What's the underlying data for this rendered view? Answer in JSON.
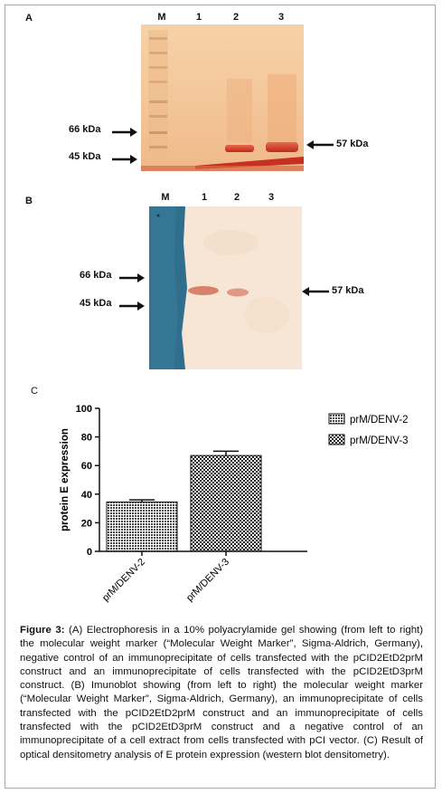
{
  "panel_a": {
    "letter": "A",
    "lanes": [
      "M",
      "1",
      "2",
      "3"
    ],
    "markers_left": [
      "66 kDa",
      "45 kDa"
    ],
    "marker_right": "57 kDa"
  },
  "panel_b": {
    "letter": "B",
    "lanes": [
      "M",
      "1",
      "2",
      "3"
    ],
    "markers_left": [
      "66 kDa",
      "45 kDa"
    ],
    "marker_right": "57 kDa"
  },
  "panel_c": {
    "letter": "C"
  },
  "chart_data": {
    "type": "bar",
    "categories": [
      "prM/DENV-2",
      "prM/DENV-3"
    ],
    "values": [
      34.5,
      67
    ],
    "errors": [
      1.5,
      3
    ],
    "xlabel": "",
    "ylabel": "protein E expression",
    "ylim": [
      0,
      100
    ],
    "yticks": [
      0,
      20,
      40,
      60,
      80,
      100
    ],
    "legend": [
      "prM/DENV-2",
      "prM/DENV-3"
    ],
    "legend_position": "top-right",
    "grid": false
  },
  "caption": {
    "label": "Figure 3:",
    "text": " (A) Electrophoresis in a 10% polyacrylamide gel showing (from left to right) the molecular weight marker (“Molecular Weight Marker”, Sigma-Aldrich, Germany), negative control of an immunoprecipitate of cells transfected with the pCID2EtD2prM construct and an immunoprecipitate of cells transfected with the pCID2EtD3prM construct. (B) Imunoblot showing (from left to right) the molecular weight marker (“Molecular Weight Marker”, Sigma-Aldrich, Germany), an immunoprecipitate of cells transfected with the pCID2EtD2prM construct and an immunoprecipitate of cells transfected with the pCID2EtD3prM construct and a negative control of an immunoprecipitate of a cell extract from cells transfected with pCI vector. (C) Result of optical densitometry analysis of E protein expression (western blot densitometry)."
  }
}
